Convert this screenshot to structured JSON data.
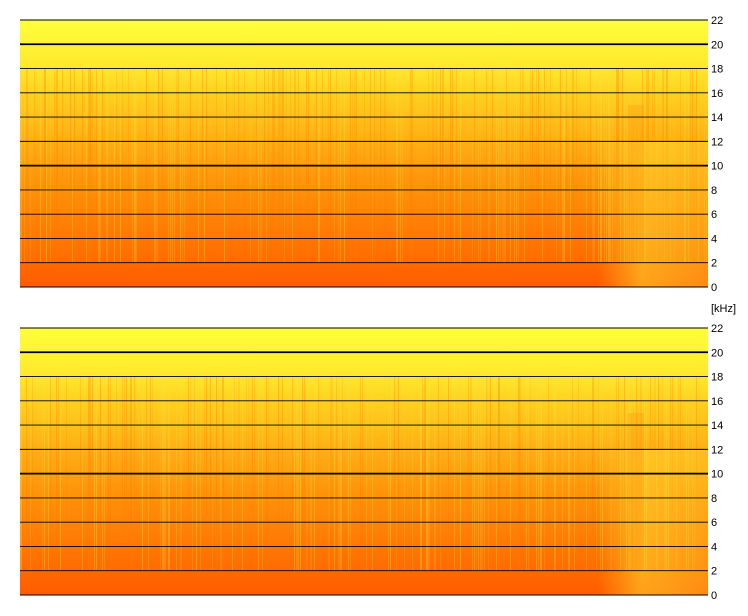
{
  "unit_label": "[kHz]",
  "colors": {
    "background": "#ffffff",
    "grid": "#000000",
    "high": "#ffff40",
    "mid": "#ffd21e",
    "low": "#ff8c00",
    "deep": "#ff5a00"
  },
  "chart_data": [
    {
      "type": "heatmap",
      "name": "channel-top",
      "title": "",
      "xlabel": "",
      "ylabel": "",
      "ylim": [
        0,
        22
      ],
      "y_ticks": [
        0,
        2,
        4,
        6,
        8,
        10,
        12,
        14,
        16,
        18,
        20,
        22
      ],
      "y_tick_labels": [
        "0",
        "2",
        "4",
        "6",
        "8",
        "10",
        "12",
        "14",
        "16",
        "18",
        "20",
        "22"
      ],
      "emphasized_gridlines": [
        10,
        20
      ],
      "grid": true,
      "colormap": [
        "#ffff40",
        "#ffd21e",
        "#ff8c00",
        "#ff5a00"
      ],
      "notes_bands": [
        {
          "from_khz": 20,
          "to_khz": 22,
          "level": "high"
        },
        {
          "from_khz": 18,
          "to_khz": 20,
          "level": "high"
        },
        {
          "from_khz": 10,
          "to_khz": 18,
          "level": "mid"
        },
        {
          "from_khz": 4,
          "to_khz": 10,
          "level": "low"
        },
        {
          "from_khz": 0,
          "to_khz": 4,
          "level": "deep"
        }
      ]
    },
    {
      "type": "heatmap",
      "name": "channel-bottom",
      "title": "",
      "xlabel": "",
      "ylabel": "",
      "ylim": [
        0,
        22
      ],
      "y_ticks": [
        0,
        2,
        4,
        6,
        8,
        10,
        12,
        14,
        16,
        18,
        20,
        22
      ],
      "y_tick_labels": [
        "0",
        "2",
        "4",
        "6",
        "8",
        "10",
        "12",
        "14",
        "16",
        "18",
        "20",
        "22"
      ],
      "emphasized_gridlines": [
        10,
        20
      ],
      "grid": true,
      "colormap": [
        "#ffff40",
        "#ffd21e",
        "#ff8c00",
        "#ff5a00"
      ],
      "notes_bands": [
        {
          "from_khz": 20,
          "to_khz": 22,
          "level": "high"
        },
        {
          "from_khz": 18,
          "to_khz": 20,
          "level": "high"
        },
        {
          "from_khz": 10,
          "to_khz": 18,
          "level": "mid"
        },
        {
          "from_khz": 4,
          "to_khz": 10,
          "level": "low"
        },
        {
          "from_khz": 0,
          "to_khz": 4,
          "level": "deep"
        }
      ]
    }
  ]
}
